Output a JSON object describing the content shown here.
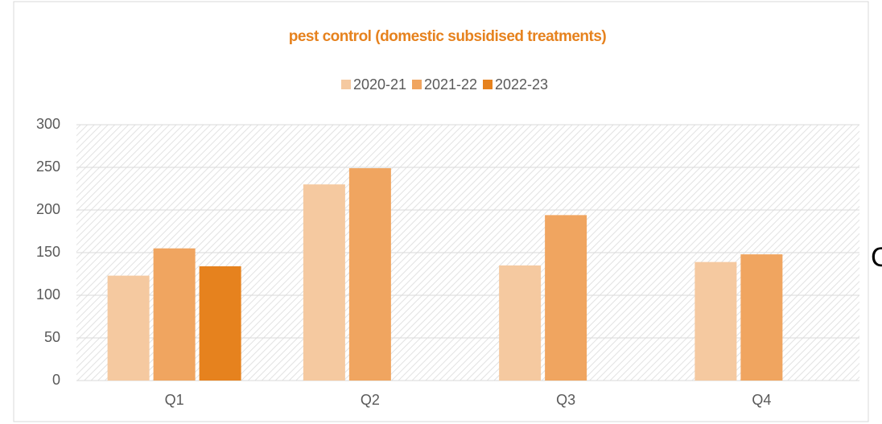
{
  "chart_data": {
    "type": "bar",
    "title": "pest control (domestic subsidised treatments)",
    "categories": [
      "Q1",
      "Q2",
      "Q3",
      "Q4"
    ],
    "series": [
      {
        "name": "2020-21",
        "color": "#f5c9a0",
        "values": [
          123,
          230,
          135,
          139
        ]
      },
      {
        "name": "2021-22",
        "color": "#f0a560",
        "values": [
          155,
          249,
          194,
          148
        ]
      },
      {
        "name": "2022-23",
        "color": "#e6821e",
        "values": [
          134,
          null,
          null,
          null
        ]
      }
    ],
    "ylim": [
      0,
      300
    ],
    "yticks": [
      0,
      50,
      100,
      150,
      200,
      250,
      300
    ],
    "grid": true,
    "legend": "top"
  },
  "side_text": "C"
}
